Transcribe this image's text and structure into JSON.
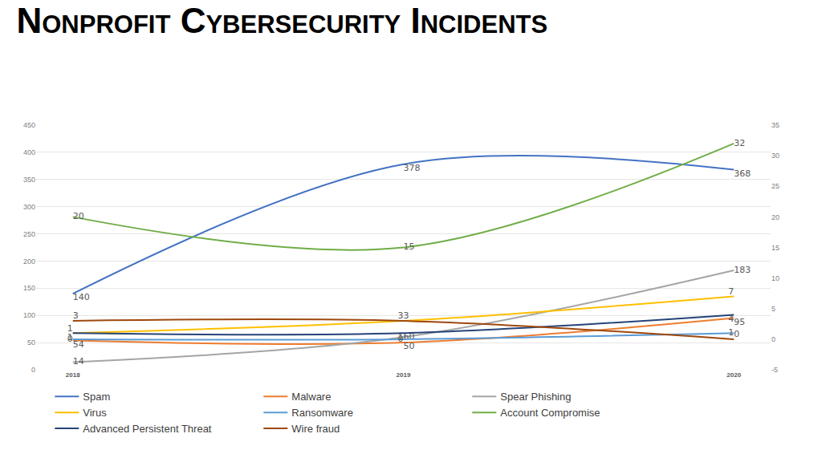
{
  "chart_data": {
    "type": "line",
    "title": "Nonprofit Cybersecurity Incidents",
    "categories": [
      "2018",
      "2019",
      "2020"
    ],
    "series": [
      {
        "name": "Spam",
        "color": "#4472c4",
        "values": [
          140,
          378,
          368
        ]
      },
      {
        "name": "Malware",
        "color": "#ed7d31",
        "values": [
          54,
          50,
          95
        ]
      },
      {
        "name": "Spear Phishing",
        "color": "#a5a5a5",
        "values": [
          14,
          60,
          183
        ]
      },
      {
        "name": "Virus",
        "color": "#ffc000",
        "values": [
          1,
          3,
          7
        ],
        "axis": "y2"
      },
      {
        "name": "Ransomware",
        "color": "#5b9bd5",
        "values": [
          0,
          0,
          1
        ],
        "axis": "y2"
      },
      {
        "name": "Account Compromise",
        "color": "#70ad47",
        "values": [
          20,
          15,
          32
        ],
        "axis": "y2"
      },
      {
        "name": "Advanced Persistent Threat",
        "color": "#264478",
        "values": [
          1,
          1,
          4
        ],
        "axis": "y2"
      },
      {
        "name": "Wire fraud",
        "color": "#9e480e",
        "values": [
          3,
          3,
          0
        ],
        "axis": "y2"
      }
    ],
    "ylim": [
      0,
      450
    ],
    "yticks": [
      0,
      50,
      100,
      150,
      200,
      250,
      300,
      350,
      400,
      450
    ],
    "y2lim": [
      -5,
      35
    ],
    "y2ticks": [
      -5,
      0,
      5,
      10,
      15,
      20,
      25,
      30,
      35
    ],
    "grid": true,
    "legend": "bottom",
    "data_labels": true
  }
}
